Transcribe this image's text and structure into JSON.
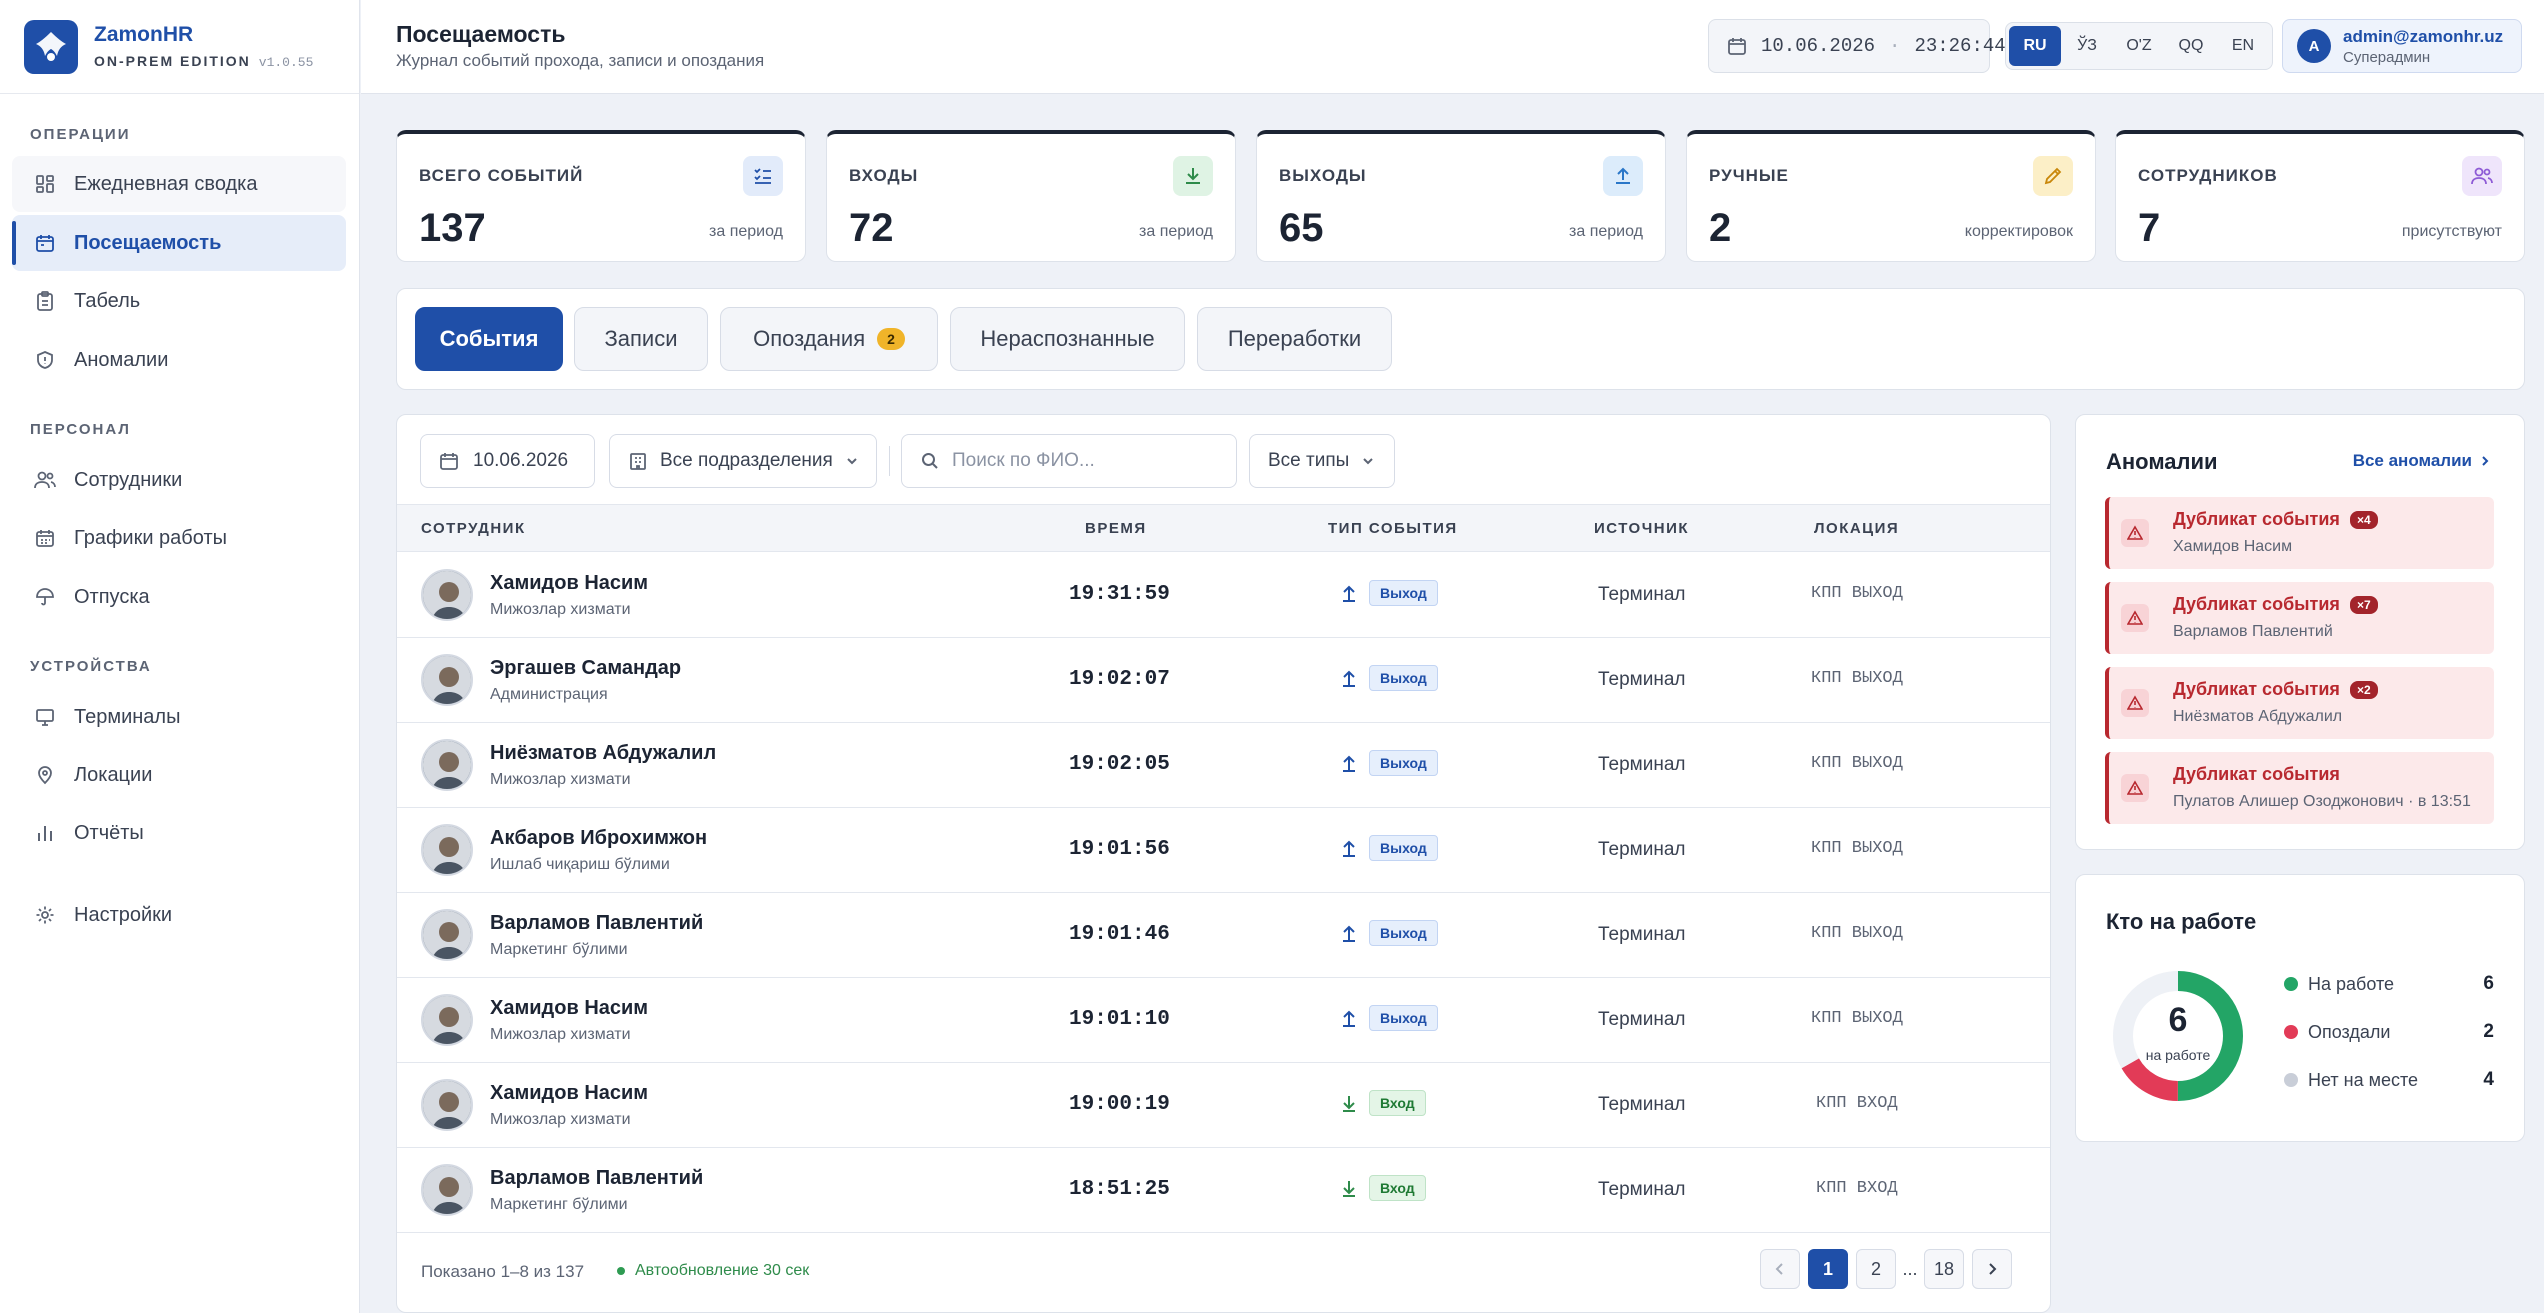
{
  "brand": {
    "name": "ZamonHR",
    "edition": "ON-PREM EDITION",
    "version": "v1.0.55"
  },
  "nav": {
    "sections": [
      "ОПЕРАЦИИ",
      "ПЕРСОНАЛ",
      "УСТРОЙСТВА"
    ],
    "items": [
      {
        "label": "Ежедневная сводка",
        "icon": "dashboard-icon"
      },
      {
        "label": "Посещаемость",
        "icon": "calendar-icon",
        "active": true
      },
      {
        "label": "Табель",
        "icon": "clipboard-icon"
      },
      {
        "label": "Аномалии",
        "icon": "shield-icon"
      },
      {
        "label": "Сотрудники",
        "icon": "users-icon"
      },
      {
        "label": "Графики работы",
        "icon": "calendar-grid-icon"
      },
      {
        "label": "Отпуска",
        "icon": "umbrella-icon"
      },
      {
        "label": "Терминалы",
        "icon": "monitor-icon"
      },
      {
        "label": "Локации",
        "icon": "map-pin-icon"
      },
      {
        "label": "Отчёты",
        "icon": "bar-chart-icon"
      },
      {
        "label": "Настройки",
        "icon": "gear-icon"
      }
    ]
  },
  "header": {
    "title": "Посещаемость",
    "subtitle": "Журнал событий прохода, записи и опоздания",
    "date": "10.06.2026",
    "time": "23:26:44",
    "languages": [
      "RU",
      "ЎЗ",
      "O'Z",
      "QQ",
      "EN"
    ],
    "active_language": "RU",
    "user": {
      "initial": "A",
      "email": "admin@zamonhr.uz",
      "role": "Суперадмин"
    }
  },
  "stats": [
    {
      "label": "ВСЕГО СОБЫТИЙ",
      "value": "137",
      "note": "за период",
      "color": "#1f4fa8",
      "icon": "checklist-icon"
    },
    {
      "label": "ВХОДЫ",
      "value": "72",
      "note": "за период",
      "color": "#2e8b4a",
      "icon": "download-icon"
    },
    {
      "label": "ВЫХОДЫ",
      "value": "65",
      "note": "за период",
      "color": "#2a77c8",
      "icon": "upload-icon"
    },
    {
      "label": "РУЧНЫЕ",
      "value": "2",
      "note": "корректировок",
      "color": "#e07b16",
      "icon": "pencil-icon"
    },
    {
      "label": "СОТРУДНИКОВ",
      "value": "7",
      "note": "присутствуют",
      "color": "#8e5bd6",
      "icon": "users-icon"
    }
  ],
  "tabs": [
    {
      "label": "События",
      "active": true
    },
    {
      "label": "Записи"
    },
    {
      "label": "Опоздания",
      "badge": "2"
    },
    {
      "label": "Нераспознанные"
    },
    {
      "label": "Переработки"
    }
  ],
  "filters": {
    "date": "10.06.2026",
    "department": "Все подразделения",
    "search_placeholder": "Поиск по ФИО...",
    "type": "Все типы"
  },
  "table": {
    "columns": [
      "СОТРУДНИК",
      "ВРЕМЯ",
      "ТИП СОБЫТИЯ",
      "ИСТОЧНИК",
      "ЛОКАЦИЯ"
    ],
    "rows": [
      {
        "name": "Хамидов Насим",
        "dept": "Мижозлар хизмати",
        "time": "19:31:59",
        "type": "Выход",
        "dir": "out",
        "source": "Терминал",
        "location": "КПП ВЫХОД"
      },
      {
        "name": "Эргашев Самандар",
        "dept": "Администрация",
        "time": "19:02:07",
        "type": "Выход",
        "dir": "out",
        "source": "Терминал",
        "location": "КПП ВЫХОД"
      },
      {
        "name": "Ниёзматов Абдужалил",
        "dept": "Мижозлар хизмати",
        "time": "19:02:05",
        "type": "Выход",
        "dir": "out",
        "source": "Терминал",
        "location": "КПП ВЫХОД"
      },
      {
        "name": "Акбаров Иброхимжон",
        "dept": "Ишлаб чиқариш бўлими",
        "time": "19:01:56",
        "type": "Выход",
        "dir": "out",
        "source": "Терминал",
        "location": "КПП ВЫХОД"
      },
      {
        "name": "Варламов Павлентий",
        "dept": "Маркетинг бўлими",
        "time": "19:01:46",
        "type": "Выход",
        "dir": "out",
        "source": "Терминал",
        "location": "КПП ВЫХОД"
      },
      {
        "name": "Хамидов Насим",
        "dept": "Мижозлар хизмати",
        "time": "19:01:10",
        "type": "Выход",
        "dir": "out",
        "source": "Терминал",
        "location": "КПП ВЫХОД"
      },
      {
        "name": "Хамидов Насим",
        "dept": "Мижозлар хизмати",
        "time": "19:00:19",
        "type": "Вход",
        "dir": "in",
        "source": "Терминал",
        "location": "КПП ВХОД"
      },
      {
        "name": "Варламов Павлентий",
        "dept": "Маркетинг бўлими",
        "time": "18:51:25",
        "type": "Вход",
        "dir": "in",
        "source": "Терминал",
        "location": "КПП ВХОД"
      }
    ]
  },
  "footer": {
    "shown": "Показано 1–8 из 137",
    "auto_refresh": "Автообновление 30 сек",
    "pages": [
      "1",
      "2",
      "...",
      "18"
    ],
    "active_page": "1"
  },
  "anomalies": {
    "title": "Аномалии",
    "link": "Все аномалии",
    "items": [
      {
        "title": "Дубликат события",
        "count": "×4",
        "sub": "Хамидов Насим"
      },
      {
        "title": "Дубликат события",
        "count": "×7",
        "sub": "Варламов Павлентий"
      },
      {
        "title": "Дубликат события",
        "count": "×2",
        "sub": "Ниёзматов Абдужалил"
      },
      {
        "title": "Дубликат события",
        "count": "",
        "sub": "Пулатов Алишер Озоджонович · в 13:51"
      }
    ]
  },
  "presence": {
    "title": "Кто на работе",
    "center_value": "6",
    "center_label": "на работе",
    "legend": [
      {
        "label": "На работе",
        "value": 6,
        "color": "#23a566"
      },
      {
        "label": "Опоздали",
        "value": 2,
        "color": "#e23b57"
      },
      {
        "label": "Нет на месте",
        "value": 4,
        "color": "#c9ced8"
      }
    ]
  }
}
